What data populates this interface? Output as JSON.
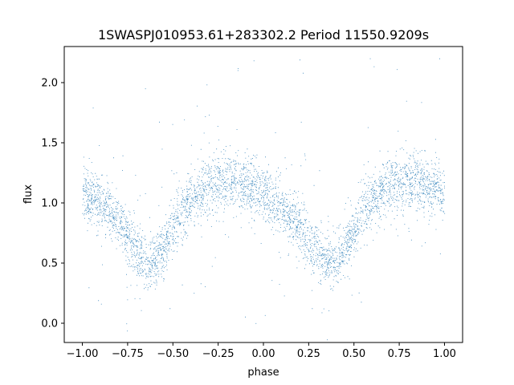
{
  "chart_data": {
    "type": "scatter",
    "title": "1SWASPJ010953.61+283302.2 Period 11550.9209s",
    "xlabel": "phase",
    "ylabel": "flux",
    "xlim": [
      -1.1,
      1.1
    ],
    "ylim": [
      -0.16,
      2.3
    ],
    "xticks": [
      -1.0,
      -0.75,
      -0.5,
      -0.25,
      0.0,
      0.25,
      0.5,
      0.75,
      1.0
    ],
    "xtick_labels": [
      "−1.00",
      "−0.75",
      "−0.50",
      "−0.25",
      "0.00",
      "0.25",
      "0.50",
      "0.75",
      "1.00"
    ],
    "yticks": [
      0.0,
      0.5,
      1.0,
      1.5,
      2.0
    ],
    "ytick_labels": [
      "0.0",
      "0.5",
      "1.0",
      "1.5",
      "2.0"
    ],
    "grid": false,
    "point_color": "#1f77b4",
    "series": [
      {
        "phase": [
          -1.0,
          -0.95,
          -0.9,
          -0.85,
          -0.8,
          -0.75,
          -0.7,
          -0.65,
          -0.62,
          -0.6,
          -0.55,
          -0.5,
          -0.45,
          -0.4,
          -0.35,
          -0.3,
          -0.25,
          -0.2,
          -0.15,
          -0.1,
          -0.05,
          0.0,
          0.05,
          0.1,
          0.15,
          0.2,
          0.25,
          0.3,
          0.35,
          0.38,
          0.4,
          0.45,
          0.5,
          0.55,
          0.6,
          0.65,
          0.7,
          0.75,
          0.8,
          0.85,
          0.9,
          0.95,
          1.0
        ],
        "flux": [
          1.08,
          1.05,
          1.0,
          0.93,
          0.83,
          0.72,
          0.6,
          0.52,
          0.5,
          0.52,
          0.62,
          0.78,
          0.92,
          1.03,
          1.1,
          1.14,
          1.17,
          1.18,
          1.18,
          1.16,
          1.12,
          1.08,
          1.02,
          0.95,
          0.88,
          0.8,
          0.7,
          0.6,
          0.52,
          0.5,
          0.52,
          0.62,
          0.78,
          0.92,
          1.03,
          1.1,
          1.14,
          1.17,
          1.18,
          1.17,
          1.15,
          1.12,
          1.08
        ],
        "scatter": 0.11
      }
    ]
  }
}
